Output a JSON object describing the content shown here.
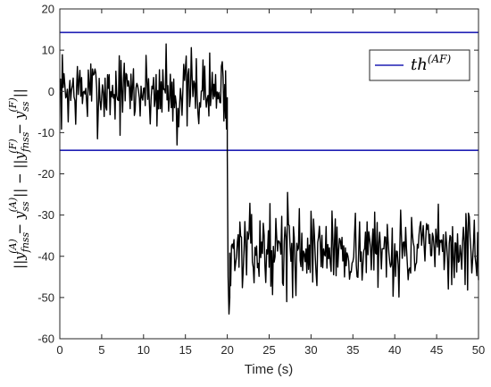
{
  "chart_data": {
    "type": "line",
    "xlabel": "Time (s)",
    "ylabel": "||y_{fn,ss}^{(A)} − y_{ss}^{(A)}|| − ||y_{fn,ss}^{(F)} − y_{ss}^{(F)}||",
    "ylabel_parts": {
      "bar1": "||",
      "y1": "y",
      "sub1": "fnss",
      "sup1": "(A)",
      "minus1": " − ",
      "y2": "y",
      "sub2": "ss",
      "sup2": "(A)",
      "mid": "|| − ||",
      "y3": "y",
      "sub3": "fnss",
      "sup3": "(F)",
      "minus2": " − ",
      "y4": "y",
      "sub4": "ss",
      "sup4": "(F)",
      "bar2": "||"
    },
    "xlim": [
      0,
      50
    ],
    "ylim": [
      -60,
      20
    ],
    "xticks": [
      0,
      5,
      10,
      15,
      20,
      25,
      30,
      35,
      40,
      45,
      50
    ],
    "yticks": [
      -60,
      -50,
      -40,
      -30,
      -20,
      -10,
      0,
      10,
      20
    ],
    "legend": {
      "position": "top-right",
      "entries": [
        {
          "label_main": "th",
          "label_sup": "(AF)",
          "color": "#1f1fb4"
        }
      ]
    },
    "thresholds": {
      "color": "#1f1fb4",
      "values": [
        14.3,
        -14.3
      ]
    },
    "signal": {
      "color": "#000000",
      "segments": [
        {
          "x_start": 0,
          "x_end": 20,
          "mean": 0,
          "amplitude": 6,
          "seed": 7
        },
        {
          "x_start": 20,
          "x_end": 50,
          "mean": -38.5,
          "amplitude": 6,
          "seed": 13
        }
      ],
      "step_points": [
        {
          "x": 19.8,
          "y": 5
        },
        {
          "x": 20.0,
          "y": -15
        },
        {
          "x": 20.1,
          "y": -45
        },
        {
          "x": 20.2,
          "y": -54
        },
        {
          "x": 20.3,
          "y": -50
        }
      ],
      "highlights": [
        {
          "x": 12.7,
          "y": 11.5
        },
        {
          "x": 14.0,
          "y": -13
        },
        {
          "x": 27.2,
          "y": -24.5
        },
        {
          "x": 27.1,
          "y": -51
        }
      ]
    },
    "grid": false
  }
}
